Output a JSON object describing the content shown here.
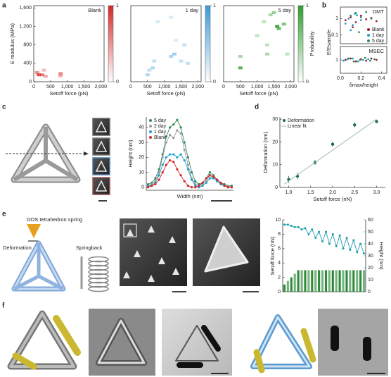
{
  "panels": {
    "labels": [
      "a",
      "b",
      "c",
      "d",
      "e",
      "f"
    ]
  },
  "annotations": {
    "spring_title": "DOS tetrahedron spring",
    "deformation": "Deformation",
    "springback": "Springback"
  },
  "chart_data": [
    {
      "type": "scatter",
      "title": "Blank",
      "xlabel": "Setoff force (pN)",
      "ylabel": "E modulus (MPa)",
      "box": true,
      "color": "#d62728",
      "xlim": [
        0,
        2100
      ],
      "ylim": [
        0,
        1650
      ],
      "xticks": [
        0,
        500,
        {
          "value": 1000,
          "label": "1,000"
        },
        {
          "value": 1500,
          "label": "1,500"
        },
        {
          "value": 2000,
          "label": "2,000"
        }
      ],
      "yticks": [
        0,
        400,
        800,
        {
          "value": 1200,
          "label": "1,200"
        },
        {
          "value": 1600,
          "label": "1,600"
        }
      ],
      "x": [
        150,
        250,
        100,
        300,
        800,
        800,
        350
      ],
      "values": [
        150,
        150,
        200,
        250,
        180,
        130,
        120
      ],
      "probability": [
        0.8,
        0.6,
        0.5,
        0.3,
        0.5,
        0.4,
        0.4
      ],
      "colorbar": {
        "ticks": [
          0,
          1
        ]
      }
    },
    {
      "type": "scatter",
      "title": "1 day",
      "xlabel": "Setoff force (pN)",
      "box": true,
      "color": "#3a9ad9",
      "xlim": [
        0,
        2100
      ],
      "ylim": [
        0,
        1650
      ],
      "xticks": [
        0,
        500,
        {
          "value": 1000,
          "label": "1,000"
        },
        {
          "value": 1500,
          "label": "1,500"
        },
        {
          "value": 2000,
          "label": "2,000"
        }
      ],
      "x": [
        500,
        550,
        700,
        800,
        1200,
        1200,
        1300,
        1600,
        1700,
        1350,
        650,
        1500
      ],
      "values": [
        150,
        250,
        450,
        1300,
        1400,
        550,
        600,
        800,
        400,
        900,
        300,
        450
      ],
      "probability": [
        0.4,
        0.3,
        0.3,
        0.2,
        0.2,
        0.4,
        0.5,
        0.3,
        0.3,
        0.2,
        0.4,
        0.3
      ],
      "colorbar": {
        "ticks": [
          0,
          1
        ]
      }
    },
    {
      "type": "scatter",
      "title": "5 day",
      "xlabel": "Setoff force (pN)",
      "box": true,
      "color": "#2ca02c",
      "xlim": [
        0,
        2100
      ],
      "ylim": [
        0,
        1650
      ],
      "xticks": [
        0,
        500,
        {
          "value": 1000,
          "label": "1,000"
        },
        {
          "value": 1500,
          "label": "1,500"
        },
        {
          "value": 2000,
          "label": "2,000"
        }
      ],
      "x": [
        500,
        500,
        1000,
        1300,
        1300,
        1500,
        1600,
        1650,
        1800,
        1200,
        1400,
        1900
      ],
      "values": [
        300,
        550,
        1000,
        600,
        800,
        1500,
        1200,
        1150,
        1250,
        1300,
        1450,
        600
      ],
      "probability": [
        0.8,
        0.4,
        0.3,
        0.4,
        0.3,
        0.5,
        0.9,
        0.7,
        0.6,
        0.3,
        0.4,
        0.3
      ],
      "colorbar": {
        "ticks": [
          0,
          1
        ],
        "label": "Probability"
      }
    },
    {
      "type": "scatter",
      "title": "DMT",
      "ylabel": "E/Esample",
      "box": true,
      "ylog": true,
      "legend": "lower right",
      "xlim": [
        0,
        0.45
      ],
      "ylim": [
        0.03,
        5
      ],
      "yticks": [
        0.1,
        1
      ],
      "series": [
        {
          "name": "Blank",
          "color": "#a01c2c",
          "x": [
            0.05,
            0.1,
            0.15,
            0.2,
            0.25,
            0.3,
            0.35,
            0.12
          ],
          "values": [
            0.8,
            1.2,
            0.6,
            1.5,
            0.9,
            1.1,
            0.7,
            0.3
          ]
        },
        {
          "name": "1 day",
          "color": "#1f9fd0",
          "x": [
            0.05,
            0.08,
            0.12,
            0.16,
            0.2,
            0.1,
            0.14
          ],
          "values": [
            0.5,
            1.0,
            0.4,
            1.6,
            0.8,
            0.2,
            2.0
          ]
        },
        {
          "name": "5 day",
          "color": "#2e8b57",
          "x": [
            0.1,
            0.15,
            0.2,
            0.25,
            0.3,
            0.18
          ],
          "values": [
            1.5,
            2.2,
            1.2,
            2.5,
            1.0,
            0.15
          ]
        }
      ]
    },
    {
      "type": "scatter",
      "title": "MSEC",
      "box": true,
      "ylog": true,
      "xlabel": "δmax/height",
      "xlim": [
        0,
        0.45
      ],
      "ylim": [
        0.4,
        2.5
      ],
      "xticks": [
        {
          "value": 0,
          "label": "0.0"
        },
        0.2,
        0.4
      ],
      "yticks": [
        1
      ],
      "series": [
        {
          "color": "#a01c2c",
          "x": [
            0.05,
            0.1,
            0.15,
            0.2,
            0.25,
            0.3,
            0.35
          ],
          "values": [
            1.0,
            1.1,
            0.9,
            1.05,
            0.95,
            1.1,
            1.0
          ]
        },
        {
          "color": "#1f9fd0",
          "x": [
            0.03,
            0.07,
            0.12,
            0.17,
            0.22,
            0.27
          ],
          "values": [
            0.95,
            1.05,
            1.1,
            0.9,
            1.0,
            1.05
          ]
        },
        {
          "color": "#2e8b57",
          "x": [
            0.08,
            0.13,
            0.19,
            0.24,
            0.29,
            0.33
          ],
          "values": [
            1.1,
            0.9,
            1.0,
            1.15,
            0.95,
            1.05
          ]
        }
      ]
    },
    {
      "type": "line",
      "xlabel": "Width (nm)",
      "ylabel": "Height (nm)",
      "legend": "upper left",
      "categories": [
        null,
        null,
        null,
        null,
        null,
        null,
        null,
        null,
        null,
        null,
        null,
        null,
        null,
        null,
        null,
        null,
        null,
        null,
        null,
        null,
        null,
        null,
        null,
        null
      ],
      "ylim": [
        -2,
        47
      ],
      "yticks": [
        0,
        10,
        20,
        30,
        40
      ],
      "series": [
        {
          "name": "5 day",
          "color": "#2e8b57",
          "values": [
            2,
            3,
            6,
            12,
            22,
            34,
            40,
            42,
            45,
            40,
            30,
            20,
            10,
            4,
            2,
            3,
            6,
            10,
            8,
            5,
            3,
            2,
            1,
            1
          ]
        },
        {
          "name": "2 day",
          "color": "#9a9a9a",
          "values": [
            1,
            2,
            4,
            10,
            20,
            30,
            35,
            33,
            38,
            36,
            25,
            15,
            6,
            2,
            1,
            2,
            4,
            8,
            6,
            4,
            2,
            1,
            1,
            0
          ]
        },
        {
          "name": "1 day",
          "color": "#1f9fd0",
          "values": [
            1,
            1,
            3,
            8,
            15,
            20,
            22,
            22,
            20,
            22,
            18,
            12,
            5,
            1,
            0,
            1,
            3,
            6,
            6,
            4,
            2,
            1,
            0,
            0
          ]
        },
        {
          "name": "Blank",
          "color": "#d62728",
          "values": [
            0,
            1,
            2,
            5,
            10,
            15,
            18,
            17,
            12,
            8,
            4,
            1,
            0,
            0,
            1,
            3,
            6,
            8,
            7,
            5,
            3,
            1,
            0,
            0
          ]
        }
      ]
    },
    {
      "type": "scatter",
      "xlabel": "Setoff force (nN)",
      "ylabel": "Deformation (nm)",
      "legend": "upper left",
      "xlim": [
        0.8,
        3.2
      ],
      "ylim": [
        0,
        31
      ],
      "xticks": [
        {
          "value": 1,
          "label": "1.0"
        },
        1.5,
        {
          "value": 2,
          "label": "2.0"
        },
        2.5,
        {
          "value": 3,
          "label": "3.0"
        }
      ],
      "yticks": [
        0,
        10,
        20,
        30
      ],
      "series": [
        {
          "name": "Deformation",
          "color": "#1e6b4a",
          "x": [
            1.0,
            1.2,
            1.6,
            2.0,
            2.5,
            3.0
          ],
          "values": [
            3.5,
            5,
            11,
            19,
            27.5,
            29
          ],
          "errors": [
            1.5,
            1.5,
            1,
            1,
            1,
            0.5
          ]
        },
        {
          "name": "Linear fit",
          "color": "#9bbfa8",
          "kind": "line",
          "x": [
            0.9,
            3.0
          ],
          "values": [
            1.5,
            30
          ]
        }
      ]
    },
    {
      "type": "bar",
      "ylabel": "Setoff force (nN)",
      "y2label": "Height (nm)",
      "categories": [
        null,
        null,
        null,
        null,
        null,
        null,
        null,
        null,
        null,
        null,
        null,
        null,
        null,
        null,
        null,
        null,
        null,
        null,
        null,
        null,
        null,
        null,
        null,
        null
      ],
      "ylim": [
        0,
        10
      ],
      "yticks": [
        0,
        2,
        4,
        6,
        8,
        10
      ],
      "y2lim": [
        0,
        60
      ],
      "y2ticks": [
        0,
        10,
        20,
        30,
        40,
        50,
        60
      ],
      "series": [
        {
          "color": "#2e8b3a",
          "values": [
            1,
            1.5,
            2,
            2.5,
            3,
            3,
            3,
            3,
            3,
            3,
            3,
            3,
            3,
            3,
            3,
            3,
            3,
            3,
            3,
            3,
            3,
            3,
            3,
            3
          ]
        },
        {
          "color": "#1f9fb0",
          "axis": "y2",
          "values": [
            56,
            56,
            55,
            54,
            54,
            52,
            53,
            48,
            52,
            45,
            50,
            42,
            50,
            40,
            48,
            38,
            47,
            36,
            45,
            35,
            43,
            33,
            40,
            32
          ]
        }
      ]
    }
  ]
}
